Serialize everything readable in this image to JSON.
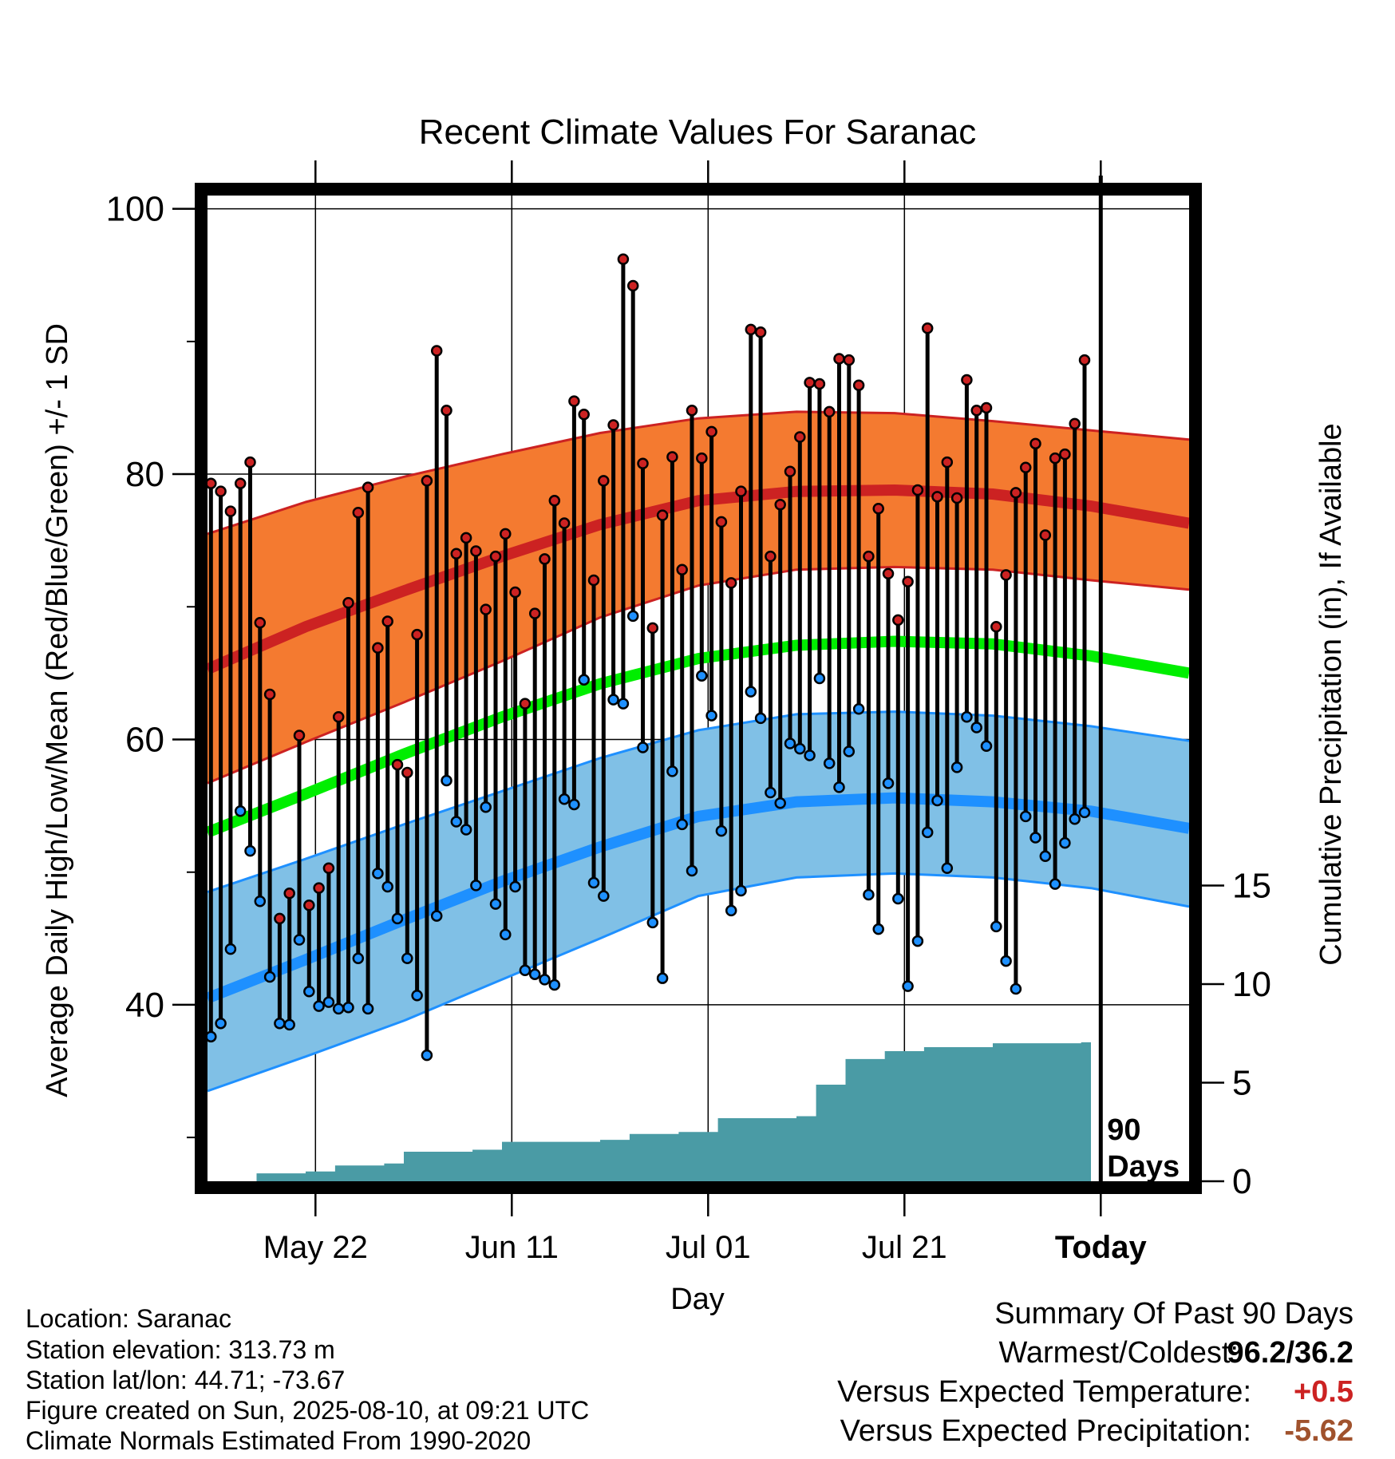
{
  "chart_data": {
    "type": "line",
    "title": "Recent Climate Values For Saranac",
    "xlabel": "Day",
    "ylabel_left": "Average Daily High/Low/Mean (Red/Blue/Green) +/- 1 SD",
    "ylabel_right": "Cumulative Precipitation (in), If Available",
    "x_tick_labels": [
      "May 22",
      "Jun 11",
      "Jul 01",
      "Jul 21",
      "Today"
    ],
    "x_tick_dates": [
      "2025-05-22",
      "2025-06-11",
      "2025-07-01",
      "2025-07-21",
      "2025-08-10"
    ],
    "x_range": [
      "2025-05-11",
      "2025-08-19"
    ],
    "y_left_ticks": [
      40,
      60,
      80,
      100
    ],
    "y_left_range": [
      26.7,
      101
    ],
    "y_right_ticks": [
      0,
      5,
      10,
      15
    ],
    "y_right_range": [
      0,
      50
    ],
    "grid": true,
    "today_annotation": "90 Days",
    "normals": {
      "dates": [
        "2025-05-11",
        "2025-05-21",
        "2025-05-31",
        "2025-06-10",
        "2025-06-20",
        "2025-06-30",
        "2025-07-10",
        "2025-07-20",
        "2025-07-30",
        "2025-08-09",
        "2025-08-19"
      ],
      "high_mean": [
        65.3,
        68.5,
        71.2,
        73.8,
        76.2,
        78.0,
        78.7,
        78.8,
        78.5,
        77.6,
        76.3
      ],
      "high_plus_sd": [
        75.5,
        77.9,
        79.8,
        81.5,
        83.1,
        84.2,
        84.7,
        84.6,
        84.0,
        83.3,
        82.6
      ],
      "high_minus_sd": [
        56.7,
        59.8,
        62.8,
        65.9,
        69.2,
        71.6,
        72.8,
        73.0,
        72.8,
        72.0,
        71.3
      ],
      "mean": [
        53.0,
        55.9,
        58.9,
        61.7,
        64.2,
        66.1,
        67.1,
        67.4,
        67.2,
        66.3,
        65.0
      ],
      "low_mean": [
        40.5,
        43.4,
        46.4,
        49.3,
        51.9,
        54.2,
        55.3,
        55.6,
        55.3,
        54.6,
        53.3
      ],
      "low_plus_sd": [
        48.5,
        51.0,
        53.6,
        56.1,
        58.6,
        60.7,
        61.9,
        62.1,
        61.8,
        61.0,
        59.9
      ],
      "low_minus_sd": [
        33.5,
        36.1,
        38.8,
        41.9,
        45.0,
        48.2,
        49.6,
        49.9,
        49.6,
        48.8,
        47.4
      ]
    },
    "observed": {
      "start_date": "2025-05-11",
      "high": [
        79.3,
        78.7,
        77.2,
        79.3,
        80.9,
        68.8,
        63.4,
        46.5,
        48.4,
        60.3,
        47.5,
        48.8,
        50.3,
        61.7,
        70.3,
        77.1,
        79.0,
        66.9,
        68.9,
        58.1,
        57.5,
        67.9,
        79.5,
        89.3,
        84.8,
        74.0,
        75.2,
        74.2,
        69.8,
        73.8,
        75.5,
        71.1,
        62.7,
        69.5,
        73.6,
        78.0,
        76.3,
        85.5,
        84.5,
        72.0,
        79.5,
        83.7,
        96.2,
        94.2,
        80.8,
        68.4,
        76.9,
        81.3,
        72.8,
        84.8,
        81.2,
        83.2,
        76.4,
        71.8,
        78.7,
        90.9,
        90.7,
        73.8,
        77.7,
        80.2,
        82.8,
        86.9,
        86.8,
        84.7,
        88.7,
        88.6,
        86.7,
        73.8,
        77.4,
        72.5,
        69.0,
        71.9,
        78.8,
        91.0,
        78.3,
        80.9,
        78.2,
        87.1,
        84.8,
        85.0,
        68.5,
        72.4,
        78.6,
        80.5,
        82.3,
        75.4,
        81.2,
        81.5,
        83.8,
        88.6
      ],
      "low": [
        37.6,
        38.6,
        44.2,
        54.6,
        51.6,
        47.8,
        42.1,
        38.6,
        38.5,
        44.9,
        41.0,
        39.9,
        40.2,
        39.7,
        39.8,
        43.5,
        39.7,
        49.9,
        48.9,
        46.5,
        43.5,
        40.7,
        36.2,
        46.7,
        56.9,
        53.8,
        53.2,
        49.0,
        54.9,
        47.6,
        45.3,
        48.9,
        42.6,
        42.3,
        41.9,
        41.5,
        55.5,
        55.1,
        64.5,
        49.2,
        48.2,
        63.0,
        62.7,
        69.3,
        59.4,
        46.2,
        42.0,
        57.6,
        53.6,
        50.1,
        64.8,
        61.8,
        53.1,
        47.1,
        48.6,
        63.6,
        61.6,
        56.0,
        55.2,
        59.7,
        59.3,
        58.8,
        64.6,
        58.2,
        56.4,
        59.1,
        62.3,
        48.3,
        45.7,
        56.7,
        48.0,
        41.4,
        44.8,
        53.0,
        55.4,
        50.3,
        57.9,
        61.7,
        60.9,
        59.5,
        45.9,
        43.3,
        41.2,
        54.2,
        52.6,
        51.2,
        49.1,
        52.2,
        54.0,
        54.5
      ]
    },
    "precip_steps": [
      [
        0,
        0
      ],
      [
        5,
        0.4
      ],
      [
        10,
        0.5
      ],
      [
        13,
        0.8
      ],
      [
        18,
        0.9
      ],
      [
        20,
        1.5
      ],
      [
        27,
        1.6
      ],
      [
        30,
        2.0
      ],
      [
        40,
        2.1
      ],
      [
        43,
        2.4
      ],
      [
        48,
        2.5
      ],
      [
        52,
        3.2
      ],
      [
        60,
        3.3
      ],
      [
        62,
        4.9
      ],
      [
        65,
        6.2
      ],
      [
        69,
        6.6
      ],
      [
        73,
        6.8
      ],
      [
        80,
        7.0
      ],
      [
        89,
        7.05
      ]
    ],
    "summary": {
      "heading": "Summary Of Past 90 Days",
      "warmest_coldest_label": "Warmest/Coldest:",
      "warmest_coldest_value": "96.2/36.2",
      "temp_label": "Versus Expected Temperature:",
      "temp_value": "+0.5",
      "precip_label": "Versus Expected Precipitation:",
      "precip_value": "-5.62",
      "temp_color": "#cc2222",
      "precip_color": "#a0522d"
    },
    "colors": {
      "high_band": "#f47a30",
      "high_line": "#cc2222",
      "low_band": "#80c0e6",
      "low_line": "#1e90ff",
      "mean_line": "#00ee00",
      "precip_fill": "#4a9ba5",
      "high_dot": "#cc2222",
      "low_dot": "#1e90ff"
    }
  },
  "info": {
    "location": "Location: Saranac",
    "elevation": "Station elevation: 313.73 m",
    "latlon": "Station lat/lon: 44.71; -73.67",
    "created": "Figure created on Sun, 2025-08-10, at 09:21 UTC",
    "normals": "Climate Normals Estimated From 1990-2020"
  }
}
